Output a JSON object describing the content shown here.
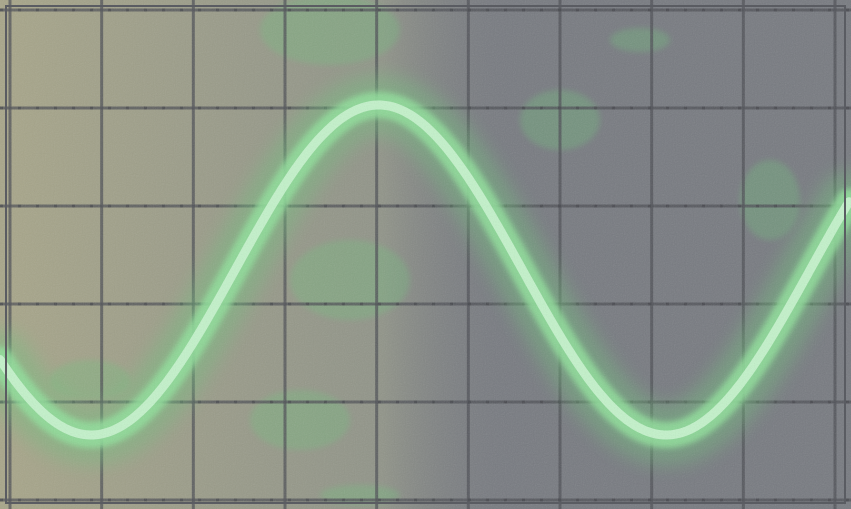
{
  "scope": {
    "trace_color": "#8fe09a",
    "trace_core_color": "#c9f5cf",
    "trace_glow_color": "#6fbf7c",
    "screen_base_color": "#777a80",
    "screen_warm_tint": "#a8a98c",
    "grid_color": "#4d4f55",
    "grid_dot_color": "#3f4146",
    "grid_divisions_x": 9,
    "grid_divisions_y": 5,
    "waveform": "sine"
  }
}
